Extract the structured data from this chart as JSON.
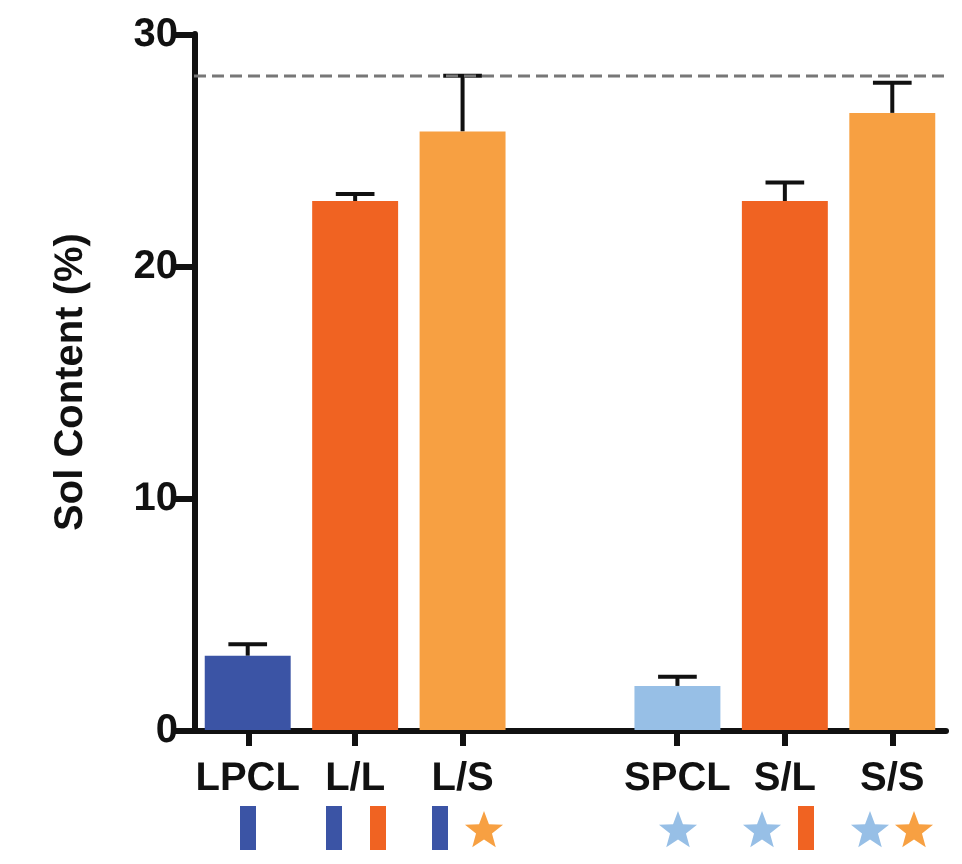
{
  "chart_data": {
    "type": "bar",
    "ylabel": "Sol Content (%)",
    "categories": [
      "LPCL",
      "L/L",
      "L/S",
      null,
      "SPCL",
      "S/L",
      "S/S"
    ],
    "values": [
      3.2,
      22.8,
      25.8,
      null,
      1.9,
      22.8,
      26.6
    ],
    "colors": [
      "#3b54a5",
      "#f06322",
      "#f7a042",
      "#ffffff",
      "#97bfe6",
      "#f06322",
      "#f7a042"
    ],
    "errors": [
      0.5,
      0.3,
      2.4,
      null,
      0.4,
      0.8,
      1.3
    ],
    "ylim": [
      0,
      30
    ],
    "yticks": [
      0,
      10,
      20,
      30
    ],
    "ref_lines": [
      {
        "axis": "y",
        "value": 28.2,
        "color": "#777777",
        "line_style": "dashed"
      }
    ],
    "grid": false
  }
}
